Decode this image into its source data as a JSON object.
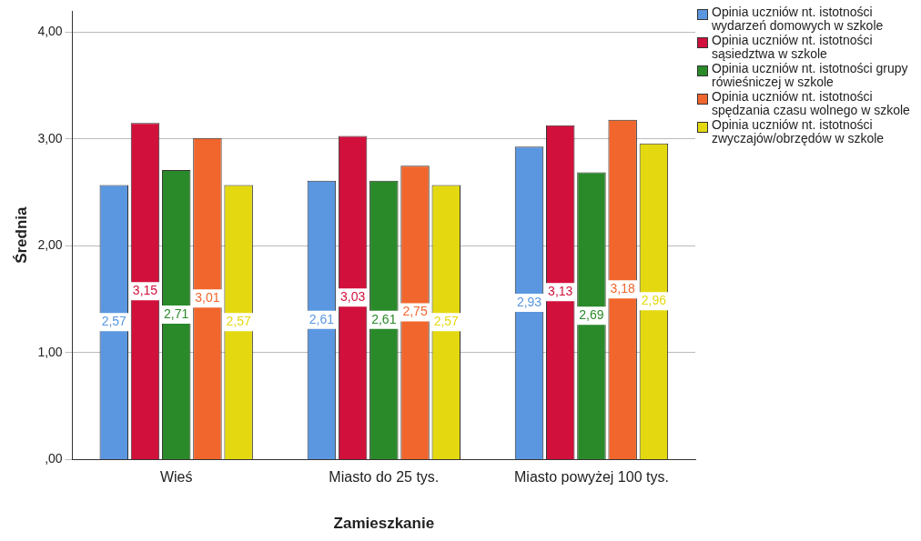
{
  "chart_data": {
    "type": "bar",
    "xlabel": "Zamieszkanie",
    "ylabel": "Średnia",
    "categories": [
      "Wieś",
      "Miasto do 25 tys.",
      "Miasto powyżej 100 tys."
    ],
    "series": [
      {
        "name": "Opinia uczniów nt. istotności wydarzeń domowych w szkole",
        "color": "#5a97e0",
        "values": [
          2.57,
          2.61,
          2.93
        ],
        "value_labels": [
          "2,57",
          "2,61",
          "2,93"
        ]
      },
      {
        "name": "Opinia uczniów nt. istotności sąsiedztwa w szkole",
        "color": "#d2103c",
        "values": [
          3.15,
          3.03,
          3.13
        ],
        "value_labels": [
          "3,15",
          "3,03",
          "3,13"
        ]
      },
      {
        "name": "Opinia uczniów nt. istotności grupy rówieśniczej w szkole",
        "color": "#2a8a2a",
        "values": [
          2.71,
          2.61,
          2.69
        ],
        "value_labels": [
          "2,71",
          "2,61",
          "2,69"
        ]
      },
      {
        "name": "Opinia uczniów nt. istotności spędzania czasu wolnego w szkole",
        "color": "#f0662c",
        "values": [
          3.01,
          2.75,
          3.18
        ],
        "value_labels": [
          "3,01",
          "2,75",
          "3,18"
        ]
      },
      {
        "name": "Opinia uczniów nt. istotności zwyczajów/obrzędów w szkole",
        "color": "#e4d910",
        "values": [
          2.57,
          2.57,
          2.96
        ],
        "value_labels": [
          "2,57",
          "2,57",
          "2,96"
        ]
      }
    ],
    "ylim": [
      0,
      4.2
    ],
    "yticks": [
      {
        "value": 0,
        "label": ",00"
      },
      {
        "value": 1,
        "label": "1,00"
      },
      {
        "value": 2,
        "label": "2,00"
      },
      {
        "value": 3,
        "label": "3,00"
      },
      {
        "value": 4,
        "label": "4,00"
      }
    ],
    "grid": "y",
    "legend": "right"
  }
}
